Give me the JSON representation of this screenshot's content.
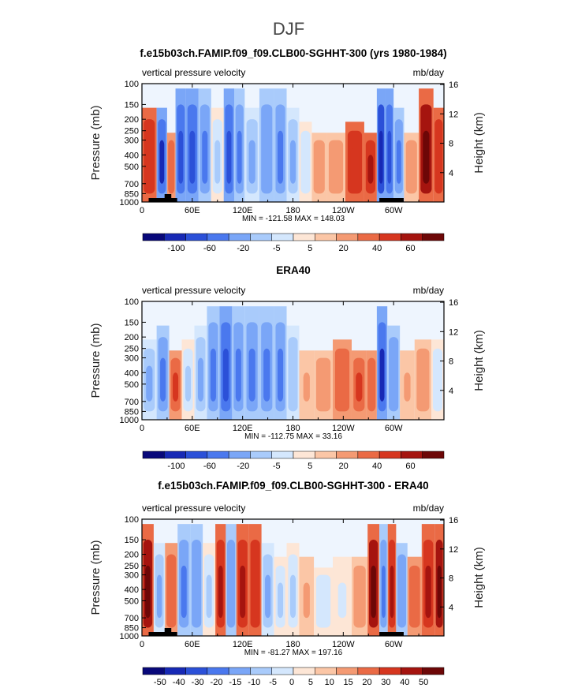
{
  "figure": {
    "title": "DJF"
  },
  "colorbar_colors": [
    "#08087a",
    "#1729b5",
    "#2b50d8",
    "#4a78ee",
    "#7aa6f7",
    "#a9cbfb",
    "#d4e7fd",
    "#fde6d6",
    "#fbc6a6",
    "#f49a73",
    "#ea6a45",
    "#d6361f",
    "#a5140f",
    "#6d0707"
  ],
  "chart_data": [
    {
      "type": "heatmap",
      "title": "f.e15b03ch.FAMIP.f09_f09.CLB00-SGHHT-300 (yrs 1980-1984)",
      "subtitle_left": "vertical pressure velocity",
      "subtitle_right": "mb/day",
      "ylabel": "Pressure (mb)",
      "ylabel_right": "Height (km)",
      "x_ticks": [
        "0",
        "60E",
        "120E",
        "180",
        "120W",
        "60W"
      ],
      "y_ticks": [
        "100",
        "150",
        "200",
        "250",
        "300",
        "400",
        "500",
        "700",
        "850",
        "1000"
      ],
      "y_ticks_right": [
        "16",
        "12",
        "8",
        "4"
      ],
      "min_max": "MIN = -121.58   MAX = 148.03",
      "colorbar_labels": [
        "-100",
        "-60",
        "-20",
        "-5",
        "5",
        "20",
        "40",
        "60"
      ],
      "topography": true,
      "columns": [
        {
          "lon": 10,
          "v": 30,
          "top": 200
        },
        {
          "lon": 25,
          "v": -80,
          "top": 200
        },
        {
          "lon": 35,
          "v": 20,
          "top": 300
        },
        {
          "lon": 45,
          "v": -60,
          "top": 150
        },
        {
          "lon": 60,
          "v": -65,
          "top": 150
        },
        {
          "lon": 75,
          "v": -55,
          "top": 150
        },
        {
          "lon": 90,
          "v": -10,
          "top": 200
        },
        {
          "lon": 105,
          "v": -70,
          "top": 150
        },
        {
          "lon": 115,
          "v": -40,
          "top": 150
        },
        {
          "lon": 130,
          "v": -20,
          "top": 200
        },
        {
          "lon": 150,
          "v": -35,
          "top": 150
        },
        {
          "lon": 165,
          "v": -45,
          "top": 150
        },
        {
          "lon": 180,
          "v": -25,
          "top": 200
        },
        {
          "lon": 195,
          "v": -8,
          "top": 250
        },
        {
          "lon": 210,
          "v": 10,
          "top": 300
        },
        {
          "lon": 230,
          "v": 8,
          "top": 300
        },
        {
          "lon": 255,
          "v": 30,
          "top": 250
        },
        {
          "lon": 275,
          "v": 40,
          "top": 300
        },
        {
          "lon": 285,
          "v": -90,
          "top": 150
        },
        {
          "lon": 295,
          "v": -60,
          "top": 150
        },
        {
          "lon": 305,
          "v": -45,
          "top": 200
        },
        {
          "lon": 320,
          "v": 10,
          "top": 300
        },
        {
          "lon": 340,
          "v": 45,
          "top": 150
        },
        {
          "lon": 355,
          "v": 30,
          "top": 200
        }
      ]
    },
    {
      "type": "heatmap",
      "title": "ERA40",
      "subtitle_left": "vertical pressure velocity",
      "subtitle_right": "mb/day",
      "ylabel": "Pressure (mb)",
      "ylabel_right": "Height (km)",
      "x_ticks": [
        "0",
        "60E",
        "120E",
        "180",
        "120W",
        "60W"
      ],
      "y_ticks": [
        "100",
        "150",
        "200",
        "250",
        "300",
        "400",
        "500",
        "700",
        "850",
        "1000"
      ],
      "y_ticks_right": [
        "16",
        "12",
        "8",
        "4"
      ],
      "min_max": "MIN = -112.75   MAX =  33.16",
      "colorbar_labels": [
        "-100",
        "-60",
        "-20",
        "-5",
        "5",
        "20",
        "40",
        "60"
      ],
      "topography": false,
      "columns": [
        {
          "lon": 10,
          "v": -20,
          "top": 250
        },
        {
          "lon": 25,
          "v": -40,
          "top": 200
        },
        {
          "lon": 40,
          "v": 25,
          "top": 300
        },
        {
          "lon": 55,
          "v": -10,
          "top": 250
        },
        {
          "lon": 70,
          "v": -20,
          "top": 200
        },
        {
          "lon": 85,
          "v": -45,
          "top": 150
        },
        {
          "lon": 100,
          "v": -70,
          "top": 150
        },
        {
          "lon": 115,
          "v": -55,
          "top": 150
        },
        {
          "lon": 130,
          "v": -40,
          "top": 150
        },
        {
          "lon": 150,
          "v": -55,
          "top": 150
        },
        {
          "lon": 165,
          "v": -45,
          "top": 150
        },
        {
          "lon": 180,
          "v": -15,
          "top": 200
        },
        {
          "lon": 195,
          "v": 6,
          "top": 300
        },
        {
          "lon": 215,
          "v": 10,
          "top": 300
        },
        {
          "lon": 240,
          "v": 18,
          "top": 250
        },
        {
          "lon": 260,
          "v": 25,
          "top": 300
        },
        {
          "lon": 275,
          "v": 15,
          "top": 300
        },
        {
          "lon": 285,
          "v": -80,
          "top": 150
        },
        {
          "lon": 300,
          "v": -30,
          "top": 200
        },
        {
          "lon": 315,
          "v": 6,
          "top": 300
        },
        {
          "lon": 335,
          "v": 10,
          "top": 250
        },
        {
          "lon": 355,
          "v": -8,
          "top": 250
        }
      ]
    },
    {
      "type": "heatmap",
      "title": "f.e15b03ch.FAMIP.f09_f09.CLB00-SGHHT-300 - ERA40",
      "subtitle_left": "vertical pressure velocity",
      "subtitle_right": "mb/day",
      "ylabel": "Pressure (mb)",
      "ylabel_right": "Height (km)",
      "x_ticks": [
        "0",
        "60E",
        "120E",
        "180",
        "120W",
        "60W"
      ],
      "y_ticks": [
        "100",
        "150",
        "200",
        "250",
        "300",
        "400",
        "500",
        "700",
        "850",
        "1000"
      ],
      "y_ticks_right": [
        "16",
        "12",
        "8",
        "4"
      ],
      "min_max": "MIN = -81.27   MAX = 197.16",
      "colorbar_labels": [
        "-50",
        "-40",
        "-30",
        "-20",
        "-15",
        "-10",
        "-5",
        "0",
        "5",
        "10",
        "15",
        "20",
        "30",
        "40",
        "50"
      ],
      "topography": true,
      "columns": [
        {
          "lon": 8,
          "v": 45,
          "top": 150
        },
        {
          "lon": 20,
          "v": -25,
          "top": 200
        },
        {
          "lon": 35,
          "v": 20,
          "top": 200
        },
        {
          "lon": 50,
          "v": -45,
          "top": 150
        },
        {
          "lon": 65,
          "v": -35,
          "top": 150
        },
        {
          "lon": 80,
          "v": -12,
          "top": 200
        },
        {
          "lon": 95,
          "v": 35,
          "top": 150
        },
        {
          "lon": 105,
          "v": -30,
          "top": 150
        },
        {
          "lon": 120,
          "v": 40,
          "top": 150
        },
        {
          "lon": 135,
          "v": 30,
          "top": 150
        },
        {
          "lon": 150,
          "v": -20,
          "top": 200
        },
        {
          "lon": 165,
          "v": -10,
          "top": 250
        },
        {
          "lon": 180,
          "v": -12,
          "top": 200
        },
        {
          "lon": 195,
          "v": 6,
          "top": 250
        },
        {
          "lon": 215,
          "v": -8,
          "top": 300
        },
        {
          "lon": 240,
          "v": -6,
          "top": 250
        },
        {
          "lon": 260,
          "v": 8,
          "top": 250
        },
        {
          "lon": 278,
          "v": 45,
          "top": 150
        },
        {
          "lon": 288,
          "v": -40,
          "top": 150
        },
        {
          "lon": 298,
          "v": 35,
          "top": 150
        },
        {
          "lon": 308,
          "v": -30,
          "top": 200
        },
        {
          "lon": 325,
          "v": 20,
          "top": 250
        },
        {
          "lon": 342,
          "v": 40,
          "top": 150
        },
        {
          "lon": 356,
          "v": 45,
          "top": 150
        }
      ]
    }
  ]
}
